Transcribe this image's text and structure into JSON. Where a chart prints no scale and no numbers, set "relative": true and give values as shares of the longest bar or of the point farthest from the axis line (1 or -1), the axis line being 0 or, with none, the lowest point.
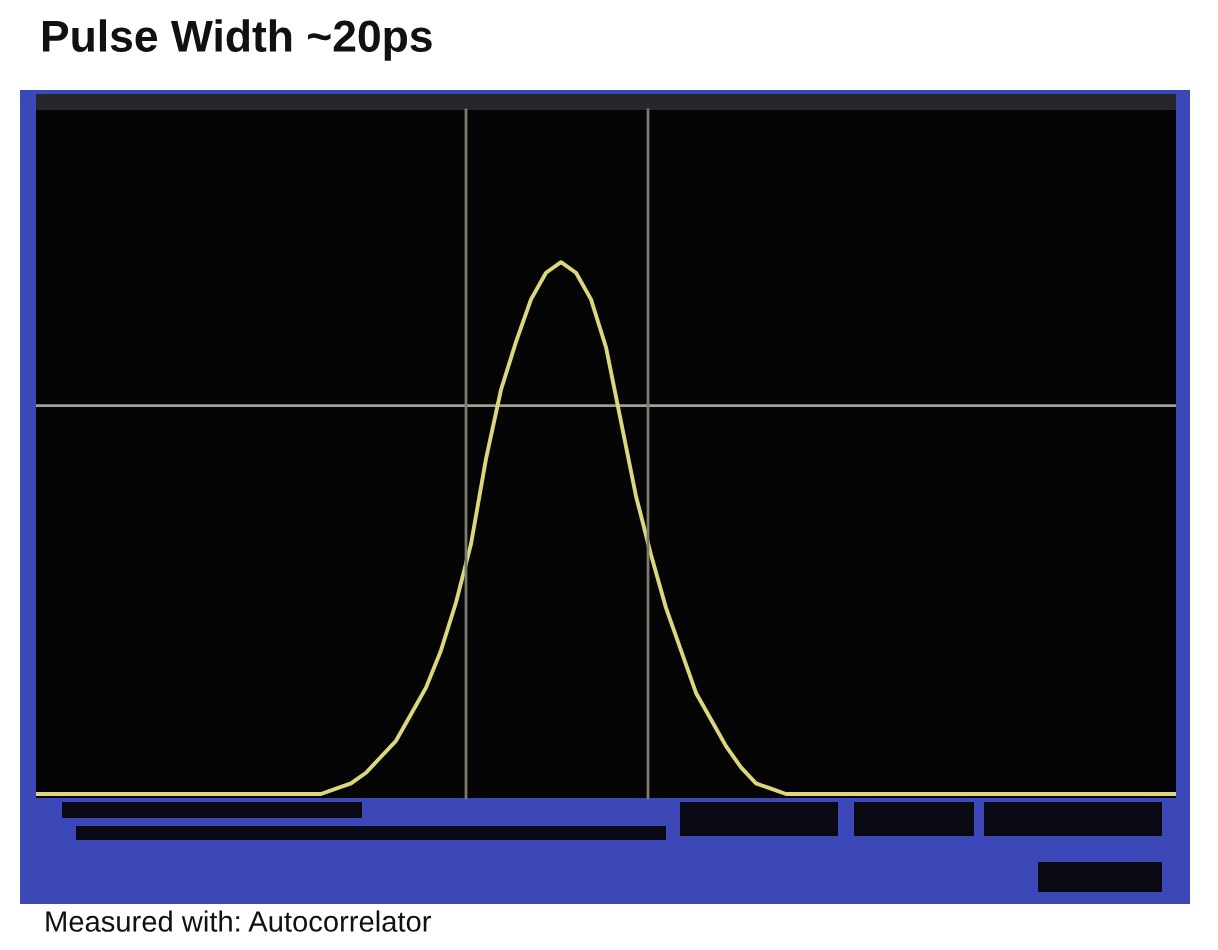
{
  "chart_data": {
    "type": "line",
    "title": "Pulse Width ~20ps",
    "annotations": [
      "Measured with: Autocorrelator"
    ],
    "relative": true,
    "line_style": "solid",
    "color": "#dcd67c",
    "categories": [
      null,
      null,
      null,
      null,
      null,
      null,
      null,
      null,
      null,
      null,
      null,
      null,
      null,
      null,
      null,
      null,
      null,
      null,
      null,
      null,
      null,
      null,
      null,
      null,
      null,
      null,
      null,
      null,
      null,
      null,
      null,
      null,
      null,
      null,
      null,
      null,
      null,
      null,
      null,
      null,
      null,
      null,
      null,
      null,
      null,
      null,
      null,
      null,
      null,
      null,
      null,
      null,
      null,
      null,
      null,
      null,
      null,
      null,
      null,
      null,
      null,
      null,
      null,
      null,
      null,
      null,
      null,
      null,
      null,
      null,
      null,
      null,
      null,
      null,
      null,
      null,
      null
    ],
    "values": [
      0,
      0,
      0,
      0,
      0,
      0,
      0,
      0,
      0,
      0,
      0,
      0,
      0,
      0,
      0,
      0,
      0,
      0,
      0,
      0,
      0.01,
      0.02,
      0.04,
      0.07,
      0.1,
      0.15,
      0.2,
      0.27,
      0.36,
      0.47,
      0.63,
      0.76,
      0.85,
      0.93,
      0.98,
      1.0,
      0.98,
      0.93,
      0.84,
      0.7,
      0.56,
      0.45,
      0.35,
      0.27,
      0.19,
      0.14,
      0.09,
      0.05,
      0.02,
      0.01,
      0,
      0,
      0,
      0,
      0,
      0,
      0,
      0,
      0,
      0,
      0,
      0,
      0,
      0,
      0,
      0,
      0,
      0,
      0,
      0,
      0,
      0,
      0,
      0,
      0,
      0,
      0
    ],
    "ref_lines": [
      {
        "axis": "y",
        "value": 0.73,
        "color": "#a0a096",
        "line_style": "solid"
      }
    ]
  }
}
